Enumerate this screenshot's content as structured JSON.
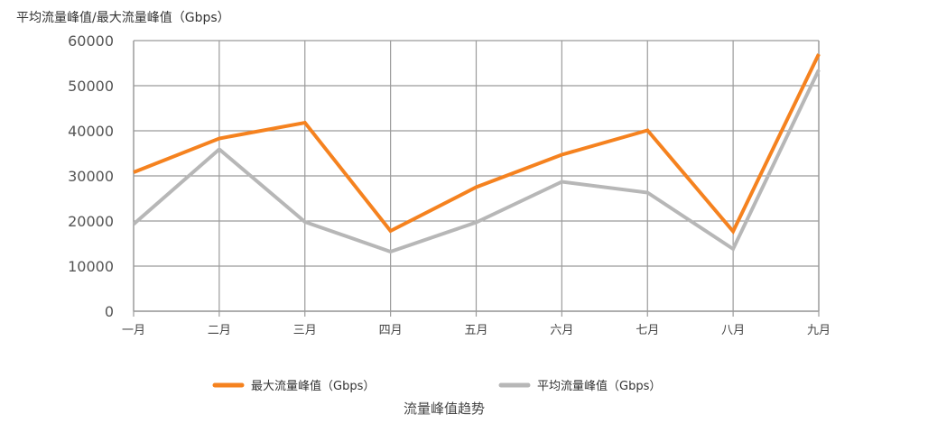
{
  "chart_data": {
    "type": "line",
    "title": "流量峰值趋势",
    "ylabel": "平均流量峰值/最大流量峰值（Gbps）",
    "xlabel": "",
    "categories": [
      "一月",
      "二月",
      "三月",
      "四月",
      "五月",
      "六月",
      "七月",
      "八月",
      "九月"
    ],
    "ylim": [
      0,
      60000
    ],
    "yticks": [
      "0",
      "10000",
      "20000",
      "30000",
      "40000",
      "50000",
      "60000"
    ],
    "grid": true,
    "legend_position": "bottom",
    "series": [
      {
        "name": "最大流量峰值（Gbps）",
        "color": "#f5821f",
        "values": [
          30800,
          38300,
          41800,
          17800,
          27500,
          34700,
          40100,
          17700,
          57000
        ]
      },
      {
        "name": "平均流量峰值（Gbps）",
        "color": "#b7b7b7",
        "values": [
          19300,
          35900,
          19800,
          13200,
          19700,
          28700,
          26300,
          13800,
          53500
        ]
      }
    ]
  }
}
